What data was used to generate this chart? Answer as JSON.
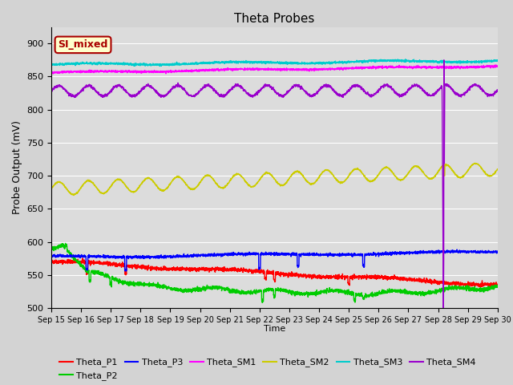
{
  "title": "Theta Probes",
  "xlabel": "Time",
  "ylabel": "Probe Output (mV)",
  "ylim": [
    500,
    925
  ],
  "yticks": [
    500,
    550,
    600,
    650,
    700,
    750,
    800,
    850,
    900
  ],
  "xtick_labels": [
    "Sep 15",
    "Sep 16",
    "Sep 17",
    "Sep 18",
    "Sep 19",
    "Sep 20",
    "Sep 21",
    "Sep 22",
    "Sep 23",
    "Sep 24",
    "Sep 25",
    "Sep 26",
    "Sep 27",
    "Sep 28",
    "Sep 29",
    "Sep 30"
  ],
  "background_color": "#dcdcdc",
  "fig_facecolor": "#d3d3d3",
  "colors": {
    "Theta_P1": "#ff0000",
    "Theta_P2": "#00cc00",
    "Theta_P3": "#0000ff",
    "Theta_SM1": "#ff00ff",
    "Theta_SM2": "#cccc00",
    "Theta_SM3": "#00cccc",
    "Theta_SM4": "#9900cc"
  },
  "annotation": {
    "text": "SI_mixed",
    "facecolor": "#ffffcc",
    "edgecolor": "#aa0000",
    "textcolor": "#aa0000"
  }
}
